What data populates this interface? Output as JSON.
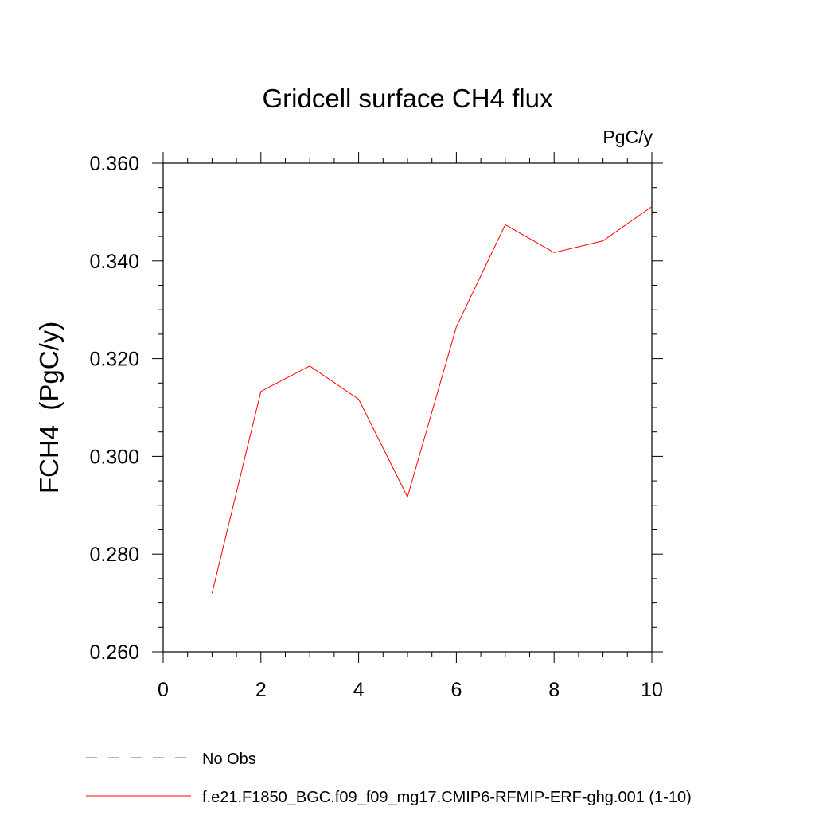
{
  "chart_data": {
    "type": "line",
    "title": "Gridcell surface CH4 flux",
    "units": "PgC/y",
    "xlabel": "",
    "ylabel": "FCH4  (PgC/y)",
    "xlim": [
      0,
      10
    ],
    "ylim": [
      0.26,
      0.36
    ],
    "x_ticks": [
      0,
      2,
      4,
      6,
      8,
      10
    ],
    "x_tick_labels": [
      "0",
      "2",
      "4",
      "6",
      "8",
      "10"
    ],
    "y_ticks": [
      0.26,
      0.28,
      0.3,
      0.32,
      0.34,
      0.36
    ],
    "y_tick_labels": [
      "0.260",
      "0.280",
      "0.300",
      "0.320",
      "0.340",
      "0.360"
    ],
    "grid": false,
    "legend_position": "bottom-left",
    "series": [
      {
        "name": "f.e21.F1850_BGC.f09_f09_mg17.CMIP6-RFMIP-ERF-ghg.001 (1-10)",
        "color": "#ff0000",
        "style": "solid",
        "x": [
          1,
          2,
          3,
          4,
          5,
          6,
          7,
          8,
          9,
          10
        ],
        "y": [
          0.272,
          0.3133,
          0.3185,
          0.3117,
          0.2917,
          0.3265,
          0.3474,
          0.3417,
          0.3441,
          0.3511
        ]
      },
      {
        "name": "No Obs",
        "color": "#6a5acd",
        "style": "dashed",
        "x": [],
        "y": []
      }
    ]
  }
}
